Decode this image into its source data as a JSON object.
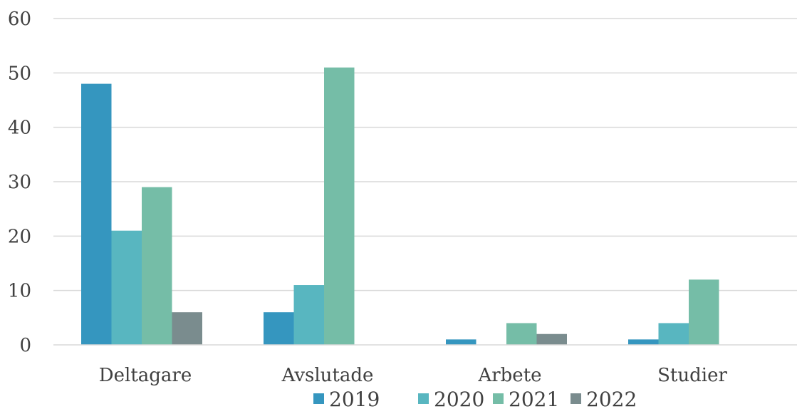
{
  "chart_data": {
    "type": "bar",
    "title": "",
    "xlabel": "",
    "ylabel": "",
    "categories": [
      "Deltagare",
      "Avslutade",
      "Arbete",
      "Studier"
    ],
    "series": [
      {
        "name": "2019",
        "color": "#3596bf",
        "values": [
          48,
          6,
          1,
          1
        ]
      },
      {
        "name": "2020",
        "color": "#58b6c0",
        "values": [
          21,
          11,
          0,
          4
        ]
      },
      {
        "name": "2021",
        "color": "#75bda7",
        "values": [
          29,
          51,
          4,
          12
        ]
      },
      {
        "name": "2022",
        "color": "#7a8c8e",
        "values": [
          6,
          0,
          2,
          0
        ]
      }
    ],
    "ylim": [
      0,
      60
    ],
    "yticks": [
      0,
      10,
      20,
      30,
      40,
      50,
      60
    ],
    "grid": true,
    "legend_position": "bottom"
  }
}
